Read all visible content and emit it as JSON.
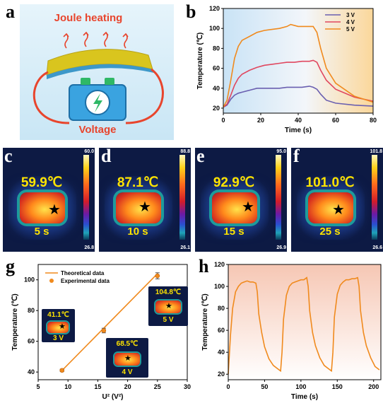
{
  "panels": {
    "a": "a",
    "b": "b",
    "c": "c",
    "d": "d",
    "e": "e",
    "f": "f",
    "g": "g",
    "h": "h"
  },
  "schematic": {
    "title": "Joule heating",
    "label": "Voltage"
  },
  "ir_images": [
    {
      "temp": "59.9℃",
      "time": "5 s",
      "scale_max": "60.0",
      "scale_min": "26.8"
    },
    {
      "temp": "87.1℃",
      "time": "10 s",
      "scale_max": "88.8",
      "scale_min": "26.1"
    },
    {
      "temp": "92.9℃",
      "time": "15 s",
      "scale_max": "95.0",
      "scale_min": "26.9"
    },
    {
      "temp": "101.0℃",
      "time": "25 s",
      "scale_max": "101.8",
      "scale_min": "26.6"
    }
  ],
  "g_thumbs": [
    {
      "temp": "41.1℃",
      "volt": "3 V"
    },
    {
      "temp": "68.5℃",
      "volt": "4 V"
    },
    {
      "temp": "104.8℃",
      "volt": "5 V"
    }
  ],
  "colors": {
    "v3": "#6a5fb0",
    "v4": "#e0475f",
    "v5": "#f08a1d",
    "orange": "#f08a1d"
  },
  "chart_data": [
    {
      "id": "b",
      "type": "line",
      "xlabel": "Time (s)",
      "ylabel": "Temperature (℃)",
      "xlim": [
        0,
        80
      ],
      "ylim": [
        15,
        120
      ],
      "xticks": [
        0,
        20,
        40,
        60,
        80
      ],
      "yticks": [
        20,
        40,
        60,
        80,
        100,
        120
      ],
      "legend": "top-right",
      "series": [
        {
          "name": "3 V",
          "x": [
            0,
            2,
            4,
            6,
            8,
            10,
            14,
            18,
            22,
            26,
            30,
            34,
            38,
            42,
            46,
            48,
            50,
            52,
            55,
            60,
            70,
            80
          ],
          "y": [
            21,
            23,
            29,
            33,
            35,
            36,
            38,
            40,
            40,
            40,
            40,
            41,
            41,
            41,
            42,
            41,
            39,
            34,
            28,
            25,
            23,
            22
          ]
        },
        {
          "name": "4 V",
          "x": [
            0,
            2,
            4,
            6,
            8,
            10,
            14,
            18,
            22,
            26,
            30,
            34,
            38,
            42,
            46,
            48,
            50,
            52,
            55,
            60,
            70,
            80
          ],
          "y": [
            21,
            24,
            33,
            43,
            50,
            54,
            58,
            61,
            63,
            64,
            65,
            66,
            66,
            67,
            67,
            68,
            66,
            58,
            48,
            39,
            31,
            27
          ]
        },
        {
          "name": "5 V",
          "x": [
            0,
            2,
            4,
            6,
            8,
            10,
            14,
            18,
            22,
            26,
            30,
            34,
            36,
            40,
            44,
            48,
            50,
            52,
            55,
            60,
            70,
            80
          ],
          "y": [
            21,
            28,
            48,
            70,
            82,
            88,
            92,
            96,
            98,
            99,
            100,
            102,
            104,
            102,
            102,
            102,
            96,
            80,
            60,
            45,
            32,
            26
          ]
        }
      ]
    },
    {
      "id": "g",
      "type": "scatter",
      "xlabel": "U² (V²)",
      "ylabel": "Temperature (℃)",
      "xlim": [
        5,
        30
      ],
      "ylim": [
        35,
        110
      ],
      "xticks": [
        5,
        10,
        15,
        20,
        25,
        30
      ],
      "yticks": [
        40,
        60,
        80,
        100
      ],
      "legend": "top-left",
      "series": [
        {
          "name": "Theoretical data",
          "x": [
            9,
            25
          ],
          "y": [
            41,
            104
          ]
        },
        {
          "name": "Experimental data",
          "x": [
            9,
            16,
            25
          ],
          "y": [
            41.1,
            67.0,
            102.6
          ],
          "err": [
            0.8,
            1.5,
            2.0
          ]
        }
      ]
    },
    {
      "id": "h",
      "type": "line",
      "xlabel": "Time (s)",
      "ylabel": "Temperature (℃)",
      "xlim": [
        0,
        210
      ],
      "ylim": [
        15,
        120
      ],
      "xticks": [
        0,
        50,
        100,
        150,
        200
      ],
      "yticks": [
        20,
        40,
        60,
        80,
        100,
        120
      ],
      "series": [
        {
          "name": "",
          "x": [
            0,
            3,
            6,
            10,
            14,
            18,
            22,
            26,
            30,
            34,
            38,
            40,
            42,
            46,
            50,
            56,
            62,
            68,
            72,
            74,
            76,
            80,
            84,
            88,
            92,
            96,
            100,
            104,
            108,
            110,
            112,
            116,
            120,
            126,
            132,
            138,
            142,
            144,
            146,
            150,
            154,
            158,
            162,
            166,
            170,
            174,
            178,
            180,
            182,
            186,
            190,
            196,
            202,
            208
          ],
          "y": [
            20,
            55,
            80,
            95,
            100,
            103,
            104,
            105,
            104,
            104,
            103,
            95,
            75,
            58,
            45,
            34,
            28,
            25,
            23,
            40,
            70,
            92,
            100,
            103,
            104,
            105,
            106,
            106,
            108,
            100,
            78,
            58,
            46,
            35,
            28,
            25,
            23,
            40,
            72,
            93,
            101,
            104,
            106,
            106,
            107,
            107,
            108,
            100,
            78,
            58,
            46,
            35,
            27,
            24
          ]
        }
      ]
    }
  ]
}
